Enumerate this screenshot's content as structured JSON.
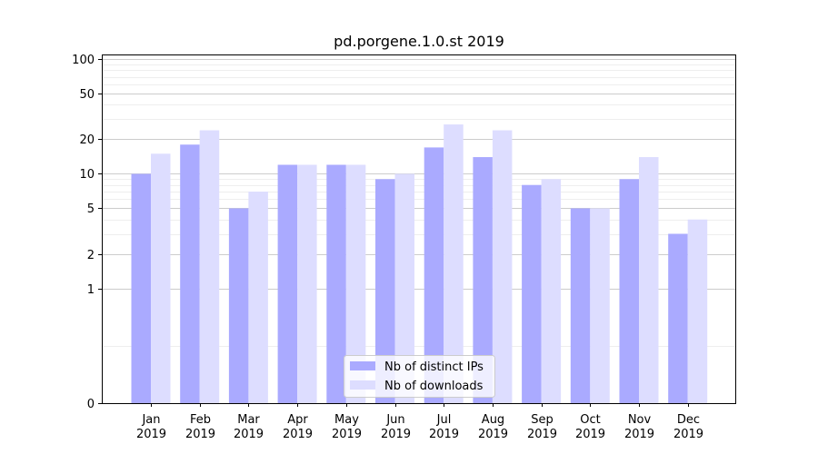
{
  "chart_data": {
    "type": "bar",
    "title": "pd.porgene.1.0.st 2019",
    "xlabel": "",
    "ylabel": "",
    "y_scale": "symlog",
    "ylim": [
      0,
      110
    ],
    "y_ticks": [
      0,
      1,
      2,
      5,
      10,
      20,
      50,
      100
    ],
    "grid": true,
    "legend_position": "bottom-center",
    "categories": [
      [
        "Jan",
        "2019"
      ],
      [
        "Feb",
        "2019"
      ],
      [
        "Mar",
        "2019"
      ],
      [
        "Apr",
        "2019"
      ],
      [
        "May",
        "2019"
      ],
      [
        "Jun",
        "2019"
      ],
      [
        "Jul",
        "2019"
      ],
      [
        "Aug",
        "2019"
      ],
      [
        "Sep",
        "2019"
      ],
      [
        "Oct",
        "2019"
      ],
      [
        "Nov",
        "2019"
      ],
      [
        "Dec",
        "2019"
      ]
    ],
    "series": [
      {
        "name": "Nb of distinct IPs",
        "color": "#aaaaff",
        "values": [
          10,
          18,
          5,
          12,
          12,
          9,
          17,
          14,
          8,
          5,
          9,
          3
        ]
      },
      {
        "name": "Nb of downloads",
        "color": "#ddddff",
        "values": [
          15,
          24,
          7,
          12,
          12,
          10,
          27,
          24,
          9,
          5,
          14,
          4
        ]
      }
    ]
  }
}
